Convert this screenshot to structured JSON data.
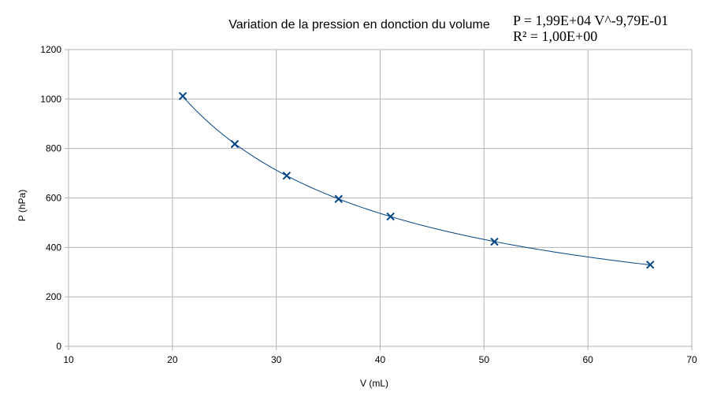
{
  "chart_data": {
    "type": "scatter",
    "title": "Variation de la pression en donction du volume",
    "xlabel": "V (mL)",
    "ylabel": "P (hPa)",
    "xlim": [
      10,
      70
    ],
    "ylim": [
      0,
      1200
    ],
    "xticks": [
      10,
      20,
      30,
      40,
      50,
      60,
      70
    ],
    "yticks": [
      0,
      200,
      400,
      600,
      800,
      1000,
      1200
    ],
    "grid": true,
    "marker": "x",
    "color": "#004586",
    "series": [
      {
        "x": [
          21,
          26,
          31,
          36,
          41,
          51,
          66
        ],
        "y": [
          1012,
          818,
          690,
          596,
          525,
          423,
          330
        ]
      }
    ],
    "trendline": {
      "type": "power",
      "coefficient": 19900,
      "exponent": -0.979,
      "x_range": [
        21,
        66
      ],
      "equation": "P = 1,99E+04 V^-9,79E-01",
      "r_squared": "R² = 1,00E+00"
    }
  }
}
